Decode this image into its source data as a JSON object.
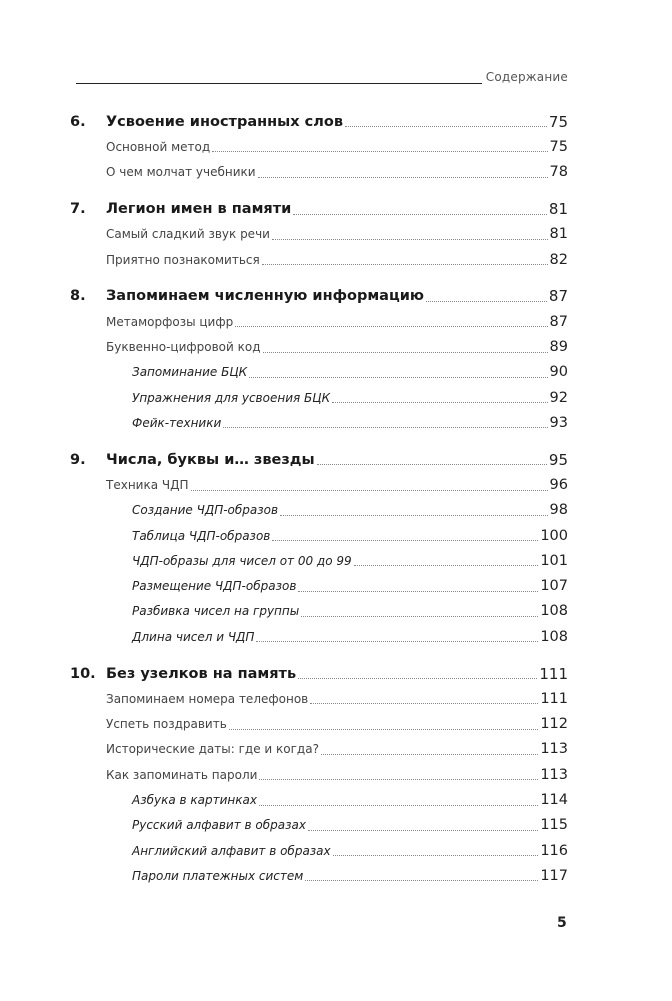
{
  "header": {
    "title": "Содержание"
  },
  "chapters": [
    {
      "number": "6.",
      "title": "Усвоение иностранных слов",
      "page": "75",
      "items": [
        {
          "level": 2,
          "title": "Основной метод",
          "page": "75"
        },
        {
          "level": 2,
          "title": "О чем молчат учебники",
          "page": "78"
        }
      ]
    },
    {
      "number": "7.",
      "title": "Легион имен в памяти",
      "page": "81",
      "items": [
        {
          "level": 2,
          "title": "Самый сладкий звук речи",
          "page": "81"
        },
        {
          "level": 2,
          "title": "Приятно познакомиться",
          "page": "82"
        }
      ]
    },
    {
      "number": "8.",
      "title": "Запоминаем численную информацию",
      "page": "87",
      "items": [
        {
          "level": 2,
          "title": "Метаморфозы цифр",
          "page": "87"
        },
        {
          "level": 2,
          "title": "Буквенно-цифровой код",
          "page": "89"
        },
        {
          "level": 3,
          "title": "Запоминание БЦК",
          "page": "90"
        },
        {
          "level": 3,
          "title": "Упражнения для усвоения БЦК",
          "page": "92"
        },
        {
          "level": 3,
          "title": "Фейк-техники",
          "page": "93"
        }
      ]
    },
    {
      "number": "9.",
      "title": "Числа, буквы и… звезды",
      "page": "95",
      "items": [
        {
          "level": 2,
          "title": "Техника ЧДП",
          "page": "96"
        },
        {
          "level": 3,
          "title": "Создание ЧДП-образов",
          "page": "98"
        },
        {
          "level": 3,
          "title": "Таблица ЧДП-образов",
          "page": "100"
        },
        {
          "level": 3,
          "title": "ЧДП-образы для чисел от 00 до 99",
          "page": "101"
        },
        {
          "level": 3,
          "title": "Размещение ЧДП-образов",
          "page": "107"
        },
        {
          "level": 3,
          "title": "Разбивка чисел на группы",
          "page": "108"
        },
        {
          "level": 3,
          "title": "Длина чисел и ЧДП",
          "page": "108"
        }
      ]
    },
    {
      "number": "10.",
      "title": "Без узелков на память",
      "page": "111",
      "items": [
        {
          "level": 2,
          "title": "Запоминаем номера телефонов",
          "page": "111"
        },
        {
          "level": 2,
          "title": "Успеть поздравить",
          "page": "112"
        },
        {
          "level": 2,
          "title": "Исторические даты: где и когда?",
          "page": "113"
        },
        {
          "level": 2,
          "title": "Как запоминать пароли",
          "page": "113"
        },
        {
          "level": 3,
          "title": "Азбука в картинках",
          "page": "114"
        },
        {
          "level": 3,
          "title": "Русский алфавит в образах",
          "page": "115"
        },
        {
          "level": 3,
          "title": "Английский алфавит в образах",
          "page": "116"
        },
        {
          "level": 3,
          "title": "Пароли платежных систем",
          "page": "117"
        }
      ]
    }
  ],
  "footer": {
    "page_number": "5"
  }
}
